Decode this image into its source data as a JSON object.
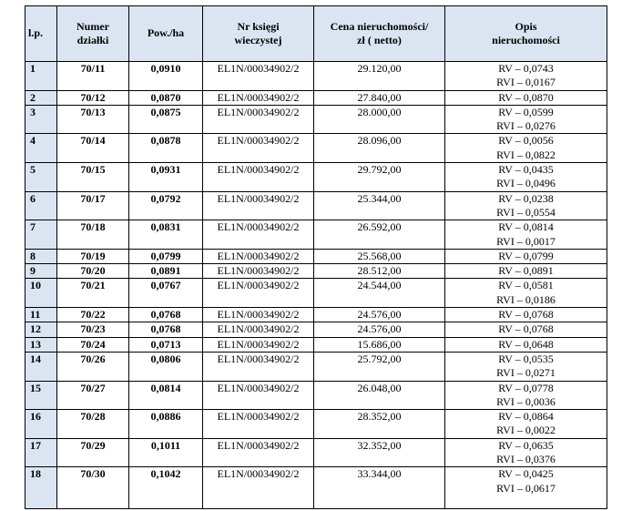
{
  "table": {
    "header": [
      [
        "l.p."
      ],
      [
        "Numer",
        "działki"
      ],
      [
        "Pow./ha"
      ],
      [
        "Nr księgi",
        "wieczystej"
      ],
      [
        "Cena nieruchomości/",
        "zł ( netto)"
      ],
      [
        "Opis",
        "nieruchomości"
      ]
    ],
    "rows": [
      [
        "1",
        "70/11",
        "0,0910",
        "EL1N/00034902/2",
        "29.120,00",
        [
          "RV – 0,0743",
          "RVI – 0,0167"
        ]
      ],
      [
        "2",
        "70/12",
        "0,0870",
        "EL1N/00034902/2",
        "27.840,00",
        [
          "RV – 0,0870"
        ]
      ],
      [
        "3",
        "70/13",
        "0,0875",
        "EL1N/00034902/2",
        "28.000,00",
        [
          "RV – 0,0599",
          "RVI – 0,0276"
        ]
      ],
      [
        "4",
        "70/14",
        "0,0878",
        "EL1N/00034902/2",
        "28.096,00",
        [
          "RV – 0,0056",
          "RVI – 0,0822"
        ]
      ],
      [
        "5",
        "70/15",
        "0,0931",
        "EL1N/00034902/2",
        "29.792,00",
        [
          "RV – 0,0435",
          "RVI – 0,0496"
        ]
      ],
      [
        "6",
        "70/17",
        "0,0792",
        "EL1N/00034902/2",
        "25.344,00",
        [
          "RV – 0,0238",
          "RVI – 0,0554"
        ]
      ],
      [
        "7",
        "70/18",
        "0,0831",
        "EL1N/00034902/2",
        "26.592,00",
        [
          "RV – 0,0814",
          "RVI – 0,0017"
        ]
      ],
      [
        "8",
        "70/19",
        "0,0799",
        "EL1N/00034902/2",
        "25.568,00",
        [
          "RV – 0,0799"
        ]
      ],
      [
        "9",
        "70/20",
        "0,0891",
        "EL1N/00034902/2",
        "28.512,00",
        [
          "RV – 0,0891"
        ]
      ],
      [
        "10",
        "70/21",
        "0,0767",
        "EL1N/00034902/2",
        "24.544,00",
        [
          "RV – 0,0581",
          "RVI – 0,0186"
        ]
      ],
      [
        "11",
        "70/22",
        "0,0768",
        "EL1N/00034902/2",
        "24.576,00",
        [
          "RV – 0,0768"
        ]
      ],
      [
        "12",
        "70/23",
        "0,0768",
        "EL1N/00034902/2",
        "24.576,00",
        [
          "RV – 0,0768"
        ]
      ],
      [
        "13",
        "70/24",
        "0,0713",
        "EL1N/00034902/2",
        "15.686,00",
        [
          "RV – 0,0648"
        ]
      ],
      [
        "14",
        "70/26",
        "0,0806",
        "EL1N/00034902/2",
        "25.792,00",
        [
          "RV – 0,0535",
          "RVI – 0,0271"
        ]
      ],
      [
        "15",
        "70/27",
        "0,0814",
        "EL1N/00034902/2",
        "26.048,00",
        [
          "RV – 0,0778",
          "RVI – 0,0036"
        ]
      ],
      [
        "16",
        "70/28",
        "0,0886",
        "EL1N/00034902/2",
        "28.352,00",
        [
          "RV – 0,0864",
          "RVI – 0,0022"
        ]
      ],
      [
        "17",
        "70/29",
        "0,1011",
        "EL1N/00034902/2",
        "32.352,00",
        [
          "RV – 0,0635",
          "RVI – 0,0376"
        ]
      ],
      [
        "18",
        "70/30",
        "0,1042",
        "EL1N/00034902/2",
        "33.344,00",
        [
          "RV – 0,0425",
          "RVI – 0,0617"
        ]
      ]
    ]
  }
}
